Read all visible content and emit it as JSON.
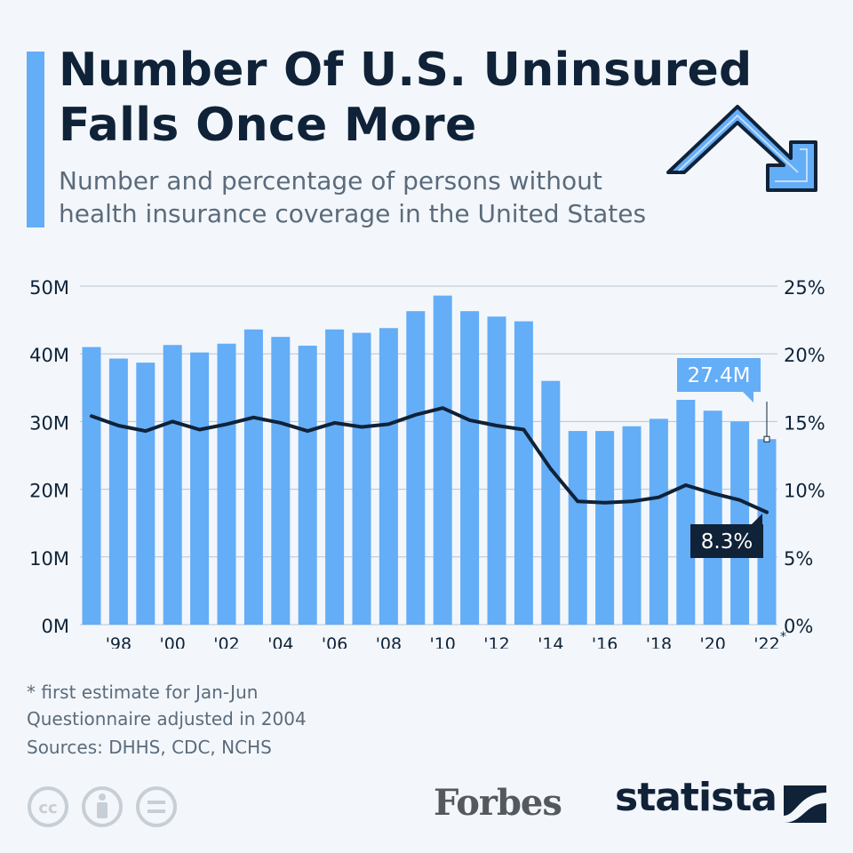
{
  "title": "Number Of U.S. Uninsured Falls Once More",
  "title_line1": "Number Of U.S. Uninsured",
  "title_line2": "Falls Once More",
  "subtitle_line1": "Number and percentage of persons without",
  "subtitle_line2": "health insurance coverage in the United States",
  "colors": {
    "bar": "#64adf7",
    "line": "#0f2238",
    "accent": "#64adf7",
    "text_dark": "#0f2238",
    "text_grey": "#5b6b7c",
    "grid": "#b7c4d1"
  },
  "chart_data": {
    "type": "bar",
    "x": [
      1997,
      1998,
      1999,
      2000,
      2001,
      2002,
      2003,
      2004,
      2005,
      2006,
      2007,
      2008,
      2009,
      2010,
      2011,
      2012,
      2013,
      2014,
      2015,
      2016,
      2017,
      2018,
      2019,
      2020,
      2021,
      2022
    ],
    "series": [
      {
        "type": "bar",
        "axis": "left",
        "values": [
          41.0,
          39.3,
          38.7,
          41.3,
          40.2,
          41.5,
          43.6,
          42.5,
          41.2,
          43.6,
          43.1,
          43.8,
          46.3,
          48.6,
          46.3,
          45.5,
          44.8,
          36.0,
          28.6,
          28.6,
          29.3,
          30.4,
          33.2,
          31.6,
          30.0,
          27.4
        ]
      },
      {
        "type": "line",
        "axis": "right",
        "values": [
          15.4,
          14.7,
          14.3,
          15.0,
          14.4,
          14.8,
          15.3,
          14.9,
          14.3,
          14.9,
          14.6,
          14.8,
          15.5,
          16.0,
          15.1,
          14.7,
          14.4,
          11.5,
          9.1,
          9.0,
          9.1,
          9.4,
          10.3,
          9.7,
          9.2,
          8.3
        ]
      }
    ],
    "x_tick_labels": [
      "'98",
      "'00",
      "'02",
      "'04",
      "'06",
      "'08",
      "'10",
      "'12",
      "'14",
      "'16",
      "'18",
      "'20",
      "'22"
    ],
    "x_tick_years": [
      1998,
      2000,
      2002,
      2004,
      2006,
      2008,
      2010,
      2012,
      2014,
      2016,
      2018,
      2020,
      2022
    ],
    "last_tick_marker": "*",
    "y_left_ticks": [
      0,
      10,
      20,
      30,
      40,
      50
    ],
    "y_left_labels": [
      "0M",
      "10M",
      "20M",
      "30M",
      "40M",
      "50M"
    ],
    "ylim_left": [
      0,
      50
    ],
    "y_right_ticks": [
      0,
      5,
      10,
      15,
      20,
      25
    ],
    "y_right_labels": [
      "0%",
      "5%",
      "10%",
      "15%",
      "20%",
      "25%"
    ],
    "ylim_right": [
      0,
      25
    ],
    "grid": true,
    "annotations": [
      {
        "text": "27.4M",
        "series": 0,
        "x": 2022
      },
      {
        "text": "8.3%",
        "series": 1,
        "x": 2022
      }
    ]
  },
  "notes": {
    "footnote": "* first estimate for Jan-Jun",
    "questionnaire": "Questionnaire adjusted in 2004",
    "sources": "Sources: DHHS, CDC, NCHS"
  },
  "branding": {
    "forbes": "Forbes",
    "statista": "statista"
  },
  "icons": [
    "accent-bar",
    "trend-down-arrow-icon",
    "cc-icon",
    "attribution-icon",
    "no-derivatives-icon",
    "statista-logo-icon"
  ]
}
